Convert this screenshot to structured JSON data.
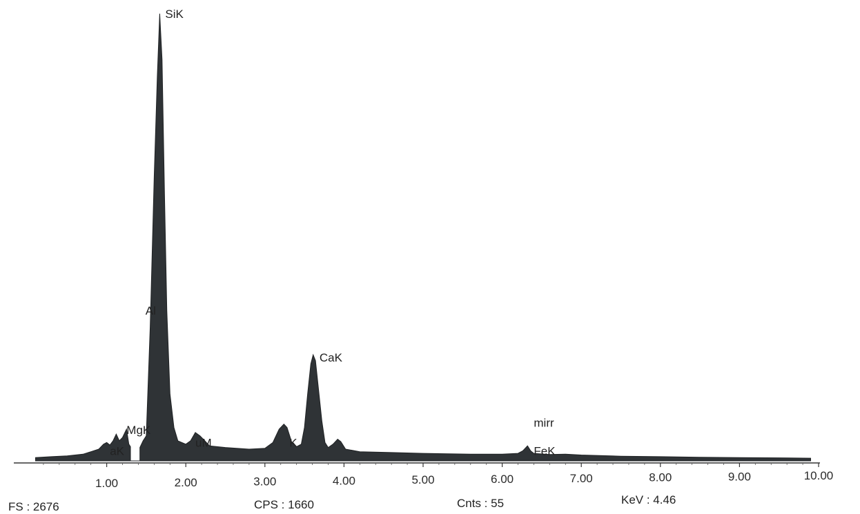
{
  "chart_data": {
    "type": "area",
    "xlim": [
      0.0,
      10.0
    ],
    "ylim": [
      0,
      2700
    ],
    "x_ticks": [
      "1.00",
      "2.00",
      "3.00",
      "4.00",
      "5.00",
      "6.00",
      "7.00",
      "8.00",
      "9.00",
      "10.00"
    ],
    "x_tick_values": [
      1,
      2,
      3,
      4,
      5,
      6,
      7,
      8,
      9,
      10
    ],
    "fill_color": "#2f3336",
    "peak_labels": [
      {
        "text": "SiK",
        "x": 1.74,
        "y": 2676
      },
      {
        "text": "Al",
        "x": 1.49,
        "y": 900
      },
      {
        "text": "MgK",
        "x": 1.25,
        "y": 185
      },
      {
        "text": "aK",
        "x": 1.04,
        "y": 60
      },
      {
        "text": "uM",
        "x": 2.12,
        "y": 110
      },
      {
        "text": "CaK",
        "x": 3.69,
        "y": 620
      },
      {
        "text": "K",
        "x": 3.31,
        "y": 110
      },
      {
        "text": "mirr",
        "x": 6.4,
        "y": 230
      },
      {
        "text": "FeK",
        "x": 6.4,
        "y": 60
      }
    ],
    "spectrum": [
      [
        0.1,
        20
      ],
      [
        0.3,
        25
      ],
      [
        0.5,
        30
      ],
      [
        0.7,
        40
      ],
      [
        0.8,
        55
      ],
      [
        0.9,
        70
      ],
      [
        0.96,
        100
      ],
      [
        1.0,
        110
      ],
      [
        1.04,
        95
      ],
      [
        1.08,
        120
      ],
      [
        1.12,
        160
      ],
      [
        1.16,
        120
      ],
      [
        1.2,
        140
      ],
      [
        1.25,
        190
      ],
      [
        1.28,
        100
      ],
      [
        1.3,
        85
      ],
      [
        1.3,
        0
      ],
      [
        1.42,
        0
      ],
      [
        1.42,
        80
      ],
      [
        1.46,
        120
      ],
      [
        1.5,
        150
      ],
      [
        1.55,
        800
      ],
      [
        1.6,
        1700
      ],
      [
        1.64,
        2300
      ],
      [
        1.67,
        2676
      ],
      [
        1.7,
        2400
      ],
      [
        1.73,
        1600
      ],
      [
        1.76,
        900
      ],
      [
        1.8,
        400
      ],
      [
        1.85,
        200
      ],
      [
        1.9,
        120
      ],
      [
        2.0,
        100
      ],
      [
        2.06,
        120
      ],
      [
        2.12,
        170
      ],
      [
        2.18,
        150
      ],
      [
        2.24,
        120
      ],
      [
        2.3,
        90
      ],
      [
        2.5,
        80
      ],
      [
        2.8,
        70
      ],
      [
        3.0,
        75
      ],
      [
        3.1,
        110
      ],
      [
        3.18,
        190
      ],
      [
        3.24,
        220
      ],
      [
        3.28,
        200
      ],
      [
        3.34,
        110
      ],
      [
        3.4,
        85
      ],
      [
        3.46,
        100
      ],
      [
        3.5,
        200
      ],
      [
        3.54,
        400
      ],
      [
        3.58,
        580
      ],
      [
        3.61,
        635
      ],
      [
        3.64,
        600
      ],
      [
        3.68,
        420
      ],
      [
        3.72,
        240
      ],
      [
        3.76,
        110
      ],
      [
        3.8,
        80
      ],
      [
        3.86,
        100
      ],
      [
        3.92,
        130
      ],
      [
        3.96,
        115
      ],
      [
        4.02,
        70
      ],
      [
        4.2,
        55
      ],
      [
        4.6,
        50
      ],
      [
        5.0,
        45
      ],
      [
        5.6,
        40
      ],
      [
        6.0,
        40
      ],
      [
        6.2,
        45
      ],
      [
        6.26,
        60
      ],
      [
        6.32,
        90
      ],
      [
        6.36,
        60
      ],
      [
        6.4,
        45
      ],
      [
        6.6,
        38
      ],
      [
        6.8,
        40
      ],
      [
        7.0,
        35
      ],
      [
        7.5,
        28
      ],
      [
        8.0,
        25
      ],
      [
        8.5,
        22
      ],
      [
        9.0,
        20
      ],
      [
        9.5,
        18
      ],
      [
        9.9,
        16
      ]
    ]
  },
  "footer": {
    "fs": "FS : 2676",
    "cps": "CPS : 1660",
    "cnts": "Cnts : 55",
    "kev": "KeV : 4.46"
  }
}
